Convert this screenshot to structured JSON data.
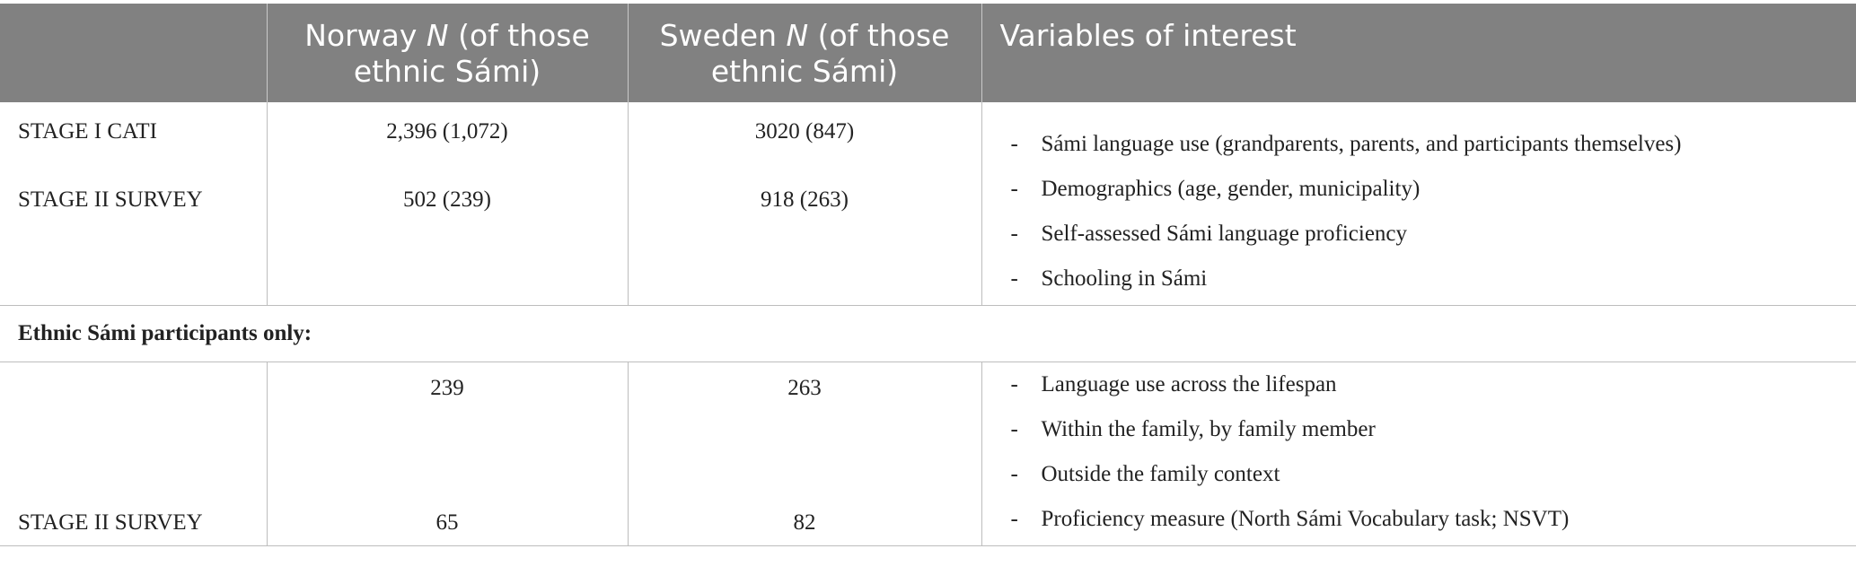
{
  "headers": {
    "col0": "",
    "col1_pre": "Norway ",
    "col1_em": "N",
    "col1_post": " (of those ethnic Sámi)",
    "col2_pre": "Sweden ",
    "col2_em": "N",
    "col2_post": " (of those ethnic Sámi)",
    "col3": "Variables of interest"
  },
  "block1": {
    "stage_a": "STAGE I CATI",
    "stage_b": "STAGE II SURVEY",
    "norway_a": "2,396 (1,072)",
    "norway_b": "502 (239)",
    "sweden_a": "3020 (847)",
    "sweden_b": "918 (263)",
    "variables": [
      "Sámi language use (grandparents, parents, and participants themselves)",
      "Demographics (age, gender, municipality)",
      "Self-assessed Sámi language proficiency",
      "Schooling in Sámi"
    ]
  },
  "section_label": "Ethnic Sámi participants only:",
  "block2": {
    "stage_b": "STAGE II SURVEY",
    "norway_a": "239",
    "norway_b": "65",
    "sweden_a": "263",
    "sweden_b": "82",
    "variables": [
      "Language use across the lifespan",
      "Within the family, by family member",
      "Outside the family context",
      "Proficiency measure (North Sámi Vocabulary task; NSVT)"
    ]
  },
  "dash": "-",
  "colors": {
    "header_bg": "#818181",
    "header_text": "#ffffff",
    "rule": "#bdbdbd"
  }
}
